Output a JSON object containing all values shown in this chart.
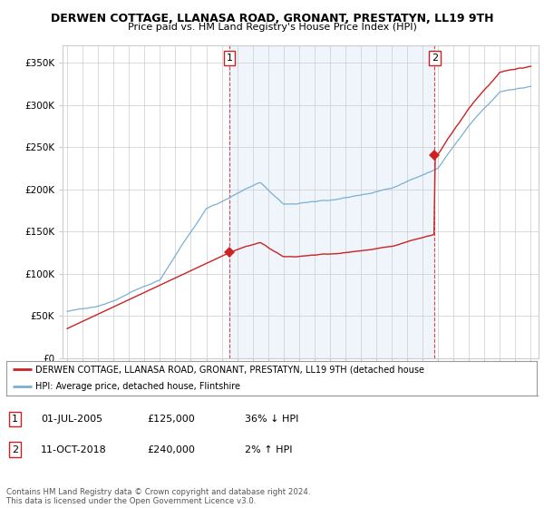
{
  "title": "DERWEN COTTAGE, LLANASA ROAD, GRONANT, PRESTATYN, LL19 9TH",
  "subtitle": "Price paid vs. HM Land Registry's House Price Index (HPI)",
  "ylim": [
    0,
    370000
  ],
  "yticks": [
    0,
    50000,
    100000,
    150000,
    200000,
    250000,
    300000,
    350000
  ],
  "sale1_date": 2005.5,
  "sale1_price": 125000,
  "sale2_date": 2018.78,
  "sale2_price": 240000,
  "hpi_color": "#7bafd4",
  "hpi_fill_color": "#ddeeff",
  "price_color": "#cc2222",
  "legend_label1": "DERWEN COTTAGE, LLANASA ROAD, GRONANT, PRESTATYN, LL19 9TH (detached house",
  "legend_label2": "HPI: Average price, detached house, Flintshire",
  "table_row1": [
    "1",
    "01-JUL-2005",
    "£125,000",
    "36% ↓ HPI"
  ],
  "table_row2": [
    "2",
    "11-OCT-2018",
    "£240,000",
    "2% ↑ HPI"
  ],
  "footnote": "Contains HM Land Registry data © Crown copyright and database right 2024.\nThis data is licensed under the Open Government Licence v3.0.",
  "background_color": "#ffffff",
  "grid_color": "#cccccc"
}
